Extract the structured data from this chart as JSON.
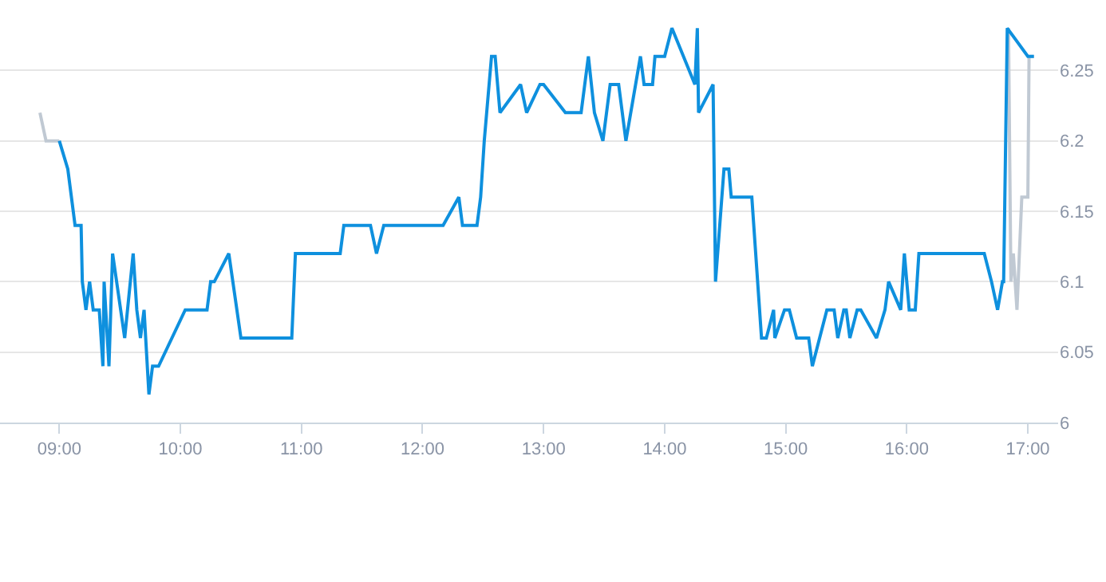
{
  "chart_data": {
    "type": "line",
    "series": [
      {
        "color": "#c0c9d3",
        "x": [
          8.84,
          8.89,
          9.0,
          null,
          16.84,
          16.86,
          16.88,
          16.91,
          16.95,
          17.0,
          17.01,
          17.05
        ],
        "values": [
          6.22,
          6.2,
          6.2,
          null,
          6.28,
          6.1,
          6.12,
          6.08,
          6.16,
          6.16,
          6.26,
          6.26
        ]
      },
      {
        "color": "#0e90de",
        "x": [
          9.0,
          9.07,
          9.13,
          9.18,
          9.19,
          9.22,
          9.25,
          9.28,
          9.33,
          9.36,
          9.37,
          9.41,
          9.44,
          9.54,
          9.61,
          9.64,
          9.67,
          9.7,
          9.74,
          9.77,
          9.82,
          10.04,
          10.22,
          10.25,
          10.28,
          10.4,
          10.5,
          10.92,
          10.95,
          11.32,
          11.35,
          11.57,
          11.62,
          11.68,
          12.17,
          12.3,
          12.33,
          12.45,
          12.48,
          12.51,
          12.57,
          12.6,
          12.64,
          12.81,
          12.86,
          12.97,
          13.0,
          13.18,
          13.31,
          13.37,
          13.42,
          13.49,
          13.55,
          13.62,
          13.68,
          13.8,
          13.83,
          13.9,
          13.92,
          14.0,
          14.06,
          14.25,
          14.27,
          14.28,
          14.4,
          14.42,
          14.49,
          14.53,
          14.55,
          14.72,
          14.8,
          14.84,
          14.9,
          14.91,
          14.99,
          15.03,
          15.09,
          15.19,
          15.22,
          15.34,
          15.4,
          15.43,
          15.48,
          15.5,
          15.53,
          15.59,
          15.62,
          15.75,
          15.82,
          15.85,
          15.95,
          15.98,
          16.02,
          16.07,
          16.1,
          16.64,
          16.7,
          16.75,
          16.79,
          16.8,
          16.83,
          17.0,
          17.05
        ],
        "values": [
          6.2,
          6.18,
          6.14,
          6.14,
          6.1,
          6.08,
          6.1,
          6.08,
          6.08,
          6.04,
          6.1,
          6.04,
          6.12,
          6.06,
          6.12,
          6.08,
          6.06,
          6.08,
          6.02,
          6.04,
          6.04,
          6.08,
          6.08,
          6.1,
          6.1,
          6.12,
          6.06,
          6.06,
          6.12,
          6.12,
          6.14,
          6.14,
          6.12,
          6.14,
          6.14,
          6.16,
          6.14,
          6.14,
          6.16,
          6.2,
          6.26,
          6.26,
          6.22,
          6.24,
          6.22,
          6.24,
          6.24,
          6.22,
          6.22,
          6.26,
          6.22,
          6.2,
          6.24,
          6.24,
          6.2,
          6.26,
          6.24,
          6.24,
          6.26,
          6.26,
          6.28,
          6.24,
          6.28,
          6.22,
          6.24,
          6.1,
          6.18,
          6.18,
          6.16,
          6.16,
          6.06,
          6.06,
          6.08,
          6.06,
          6.08,
          6.08,
          6.06,
          6.06,
          6.04,
          6.08,
          6.08,
          6.06,
          6.08,
          6.08,
          6.06,
          6.08,
          6.08,
          6.06,
          6.08,
          6.1,
          6.08,
          6.12,
          6.08,
          6.08,
          6.12,
          6.12,
          6.1,
          6.08,
          6.1,
          6.1,
          6.28,
          6.26,
          6.26
        ]
      }
    ],
    "xlim": [
      8.51,
      17.25
    ],
    "xticks": [
      {
        "value": 9,
        "label": "09:00"
      },
      {
        "value": 10,
        "label": "10:00"
      },
      {
        "value": 11,
        "label": "11:00"
      },
      {
        "value": 12,
        "label": "12:00"
      },
      {
        "value": 13,
        "label": "13:00"
      },
      {
        "value": 14,
        "label": "14:00"
      },
      {
        "value": 15,
        "label": "15:00"
      },
      {
        "value": 16,
        "label": "16:00"
      },
      {
        "value": 17,
        "label": "17:00"
      }
    ],
    "ylim": [
      6,
      6.3
    ],
    "yticks": [
      6,
      6.05,
      6.1,
      6.15,
      6.2,
      6.25
    ],
    "grid": "y",
    "marker": "none",
    "line_style": "solid"
  }
}
